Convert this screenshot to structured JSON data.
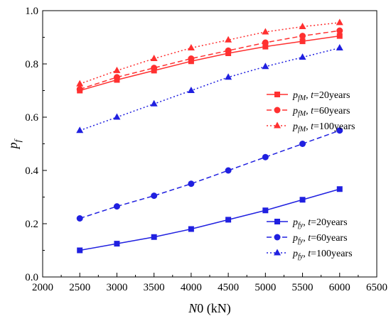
{
  "chart_data": {
    "type": "line",
    "x": [
      2500,
      3000,
      3500,
      4000,
      4500,
      5000,
      5500,
      6000
    ],
    "xlim": [
      2000,
      6500
    ],
    "ylim": [
      0.0,
      1.0
    ],
    "xticks": [
      "2000",
      "2500",
      "3000",
      "3500",
      "4000",
      "4500",
      "5000",
      "5500",
      "6000",
      "6500"
    ],
    "yticks": [
      "0.0",
      "0.2",
      "0.4",
      "0.6",
      "0.8",
      "1.0"
    ],
    "xlabel": {
      "var": "N",
      "rest": "0 (kN)"
    },
    "ylabel": {
      "var": "p",
      "sub": "f"
    },
    "grid": false,
    "series": [
      {
        "sym": "p",
        "sub": "fM",
        "t": "t",
        "eq": "=20years",
        "color": "#ff3030",
        "marker": "square",
        "dash": "solid",
        "values": [
          0.7,
          0.74,
          0.775,
          0.81,
          0.84,
          0.865,
          0.885,
          0.905
        ]
      },
      {
        "sym": "p",
        "sub": "fM",
        "t": "t",
        "eq": "=60years",
        "color": "#ff3030",
        "marker": "circle",
        "dash": "dashed",
        "values": [
          0.705,
          0.75,
          0.785,
          0.82,
          0.85,
          0.88,
          0.905,
          0.925
        ]
      },
      {
        "sym": "p",
        "sub": "fM",
        "t": "t",
        "eq": "=100years",
        "color": "#ff3030",
        "marker": "triangle",
        "dash": "dotted",
        "values": [
          0.725,
          0.775,
          0.82,
          0.86,
          0.89,
          0.92,
          0.94,
          0.955
        ]
      },
      {
        "sym": "p",
        "sub": "fy",
        "t": "t",
        "eq": "=20years",
        "color": "#2020e0",
        "marker": "square",
        "dash": "solid",
        "values": [
          0.1,
          0.125,
          0.15,
          0.18,
          0.215,
          0.25,
          0.29,
          0.33
        ]
      },
      {
        "sym": "p",
        "sub": "fy",
        "t": "t",
        "eq": "=60years",
        "color": "#2020e0",
        "marker": "circle",
        "dash": "dashed",
        "values": [
          0.22,
          0.265,
          0.305,
          0.35,
          0.4,
          0.45,
          0.5,
          0.55
        ]
      },
      {
        "sym": "p",
        "sub": "fy",
        "t": "t",
        "eq": "=100years",
        "color": "#2020e0",
        "marker": "triangle",
        "dash": "dotted",
        "values": [
          0.55,
          0.6,
          0.65,
          0.7,
          0.75,
          0.79,
          0.825,
          0.86
        ]
      }
    ],
    "legends": [
      {
        "position": "upper-right",
        "series": [
          0,
          1,
          2
        ]
      },
      {
        "position": "lower-right",
        "series": [
          3,
          4,
          5
        ]
      }
    ]
  }
}
